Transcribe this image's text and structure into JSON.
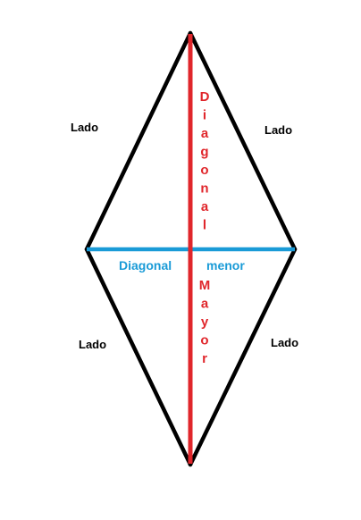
{
  "side_labels": [
    "Lado",
    "Lado",
    "Lado",
    "Lado"
  ],
  "major_diagonal": {
    "word1": "Diagonal",
    "word2": "Mayor"
  },
  "minor_diagonal": {
    "word1": "Diagonal",
    "word2": "menor"
  },
  "colors": {
    "outline": "#000000",
    "major": "#e0262b",
    "minor": "#1a9bd7",
    "background": "#ffffff"
  }
}
